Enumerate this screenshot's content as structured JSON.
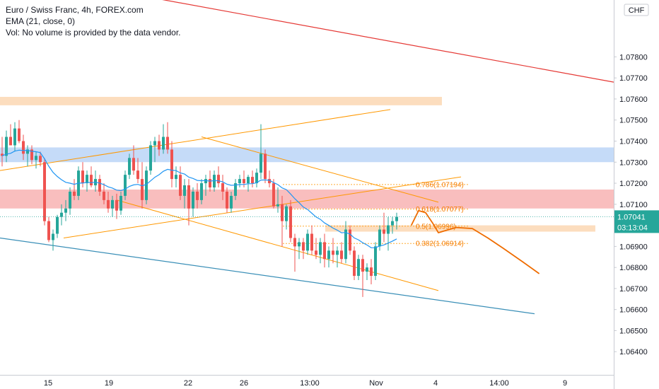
{
  "legend": {
    "title": "Euro / Swiss Franc, 4h, FOREX.com",
    "ema": "EMA (21, close, 0)",
    "vol": "Vol: No volume is provided by the data vendor."
  },
  "currency_badge": "CHF",
  "last_price": "1.07041",
  "countdown": "03:13:04",
  "colors": {
    "up": "#26a69a",
    "down": "#ef5350",
    "ema": "#2196f3",
    "orange": "#ff9800",
    "red_line": "#e53935",
    "blue_line": "#3a8fb7",
    "blue_zone": "#bbd5f7",
    "red_zone": "#f8b3b3",
    "orange_zone": "#fbd7b3",
    "projection": "#ef6c00"
  },
  "chart_data": {
    "type": "candlestick",
    "title": "Euro / Swiss Franc, 4h, FOREX.com",
    "y_axis": {
      "range": [
        1.0629,
        1.0807
      ],
      "ticks": [
        "1.07800",
        "1.07700",
        "1.07600",
        "1.07500",
        "1.07400",
        "1.07300",
        "1.07200",
        "1.07100",
        "1.06900",
        "1.06800",
        "1.06700",
        "1.06600",
        "1.06500",
        "1.06400"
      ]
    },
    "x_axis": {
      "ticks": [
        {
          "label": "15",
          "pos": 0
        },
        {
          "label": "19",
          "pos": 1
        },
        {
          "label": "22",
          "pos": 2
        },
        {
          "label": "26",
          "pos": 3
        },
        {
          "label": "13:00",
          "pos": 4
        },
        {
          "label": "Nov",
          "pos": 5
        },
        {
          "label": "4",
          "pos": 6
        },
        {
          "label": "14:00",
          "pos": 7
        },
        {
          "label": "9",
          "pos": 8
        }
      ]
    },
    "candles": [
      {
        "o": 1.0734,
        "h": 1.0742,
        "l": 1.0728,
        "c": 1.0733
      },
      {
        "o": 1.0733,
        "h": 1.0745,
        "l": 1.073,
        "c": 1.0742
      },
      {
        "o": 1.0742,
        "h": 1.0748,
        "l": 1.0738,
        "c": 1.0738
      },
      {
        "o": 1.0738,
        "h": 1.0749,
        "l": 1.0735,
        "c": 1.0746
      },
      {
        "o": 1.0746,
        "h": 1.075,
        "l": 1.0739,
        "c": 1.074
      },
      {
        "o": 1.074,
        "h": 1.0743,
        "l": 1.0731,
        "c": 1.0734
      },
      {
        "o": 1.0734,
        "h": 1.0738,
        "l": 1.0728,
        "c": 1.0736
      },
      {
        "o": 1.0736,
        "h": 1.0738,
        "l": 1.0729,
        "c": 1.0731
      },
      {
        "o": 1.0731,
        "h": 1.0735,
        "l": 1.0727,
        "c": 1.0733
      },
      {
        "o": 1.0733,
        "h": 1.0735,
        "l": 1.0728,
        "c": 1.073
      },
      {
        "o": 1.073,
        "h": 1.0732,
        "l": 1.07,
        "c": 1.0702
      },
      {
        "o": 1.0702,
        "h": 1.0704,
        "l": 1.0692,
        "c": 1.0693
      },
      {
        "o": 1.0693,
        "h": 1.0698,
        "l": 1.0688,
        "c": 1.0696
      },
      {
        "o": 1.0696,
        "h": 1.0705,
        "l": 1.0694,
        "c": 1.0704
      },
      {
        "o": 1.0704,
        "h": 1.071,
        "l": 1.07,
        "c": 1.0706
      },
      {
        "o": 1.0706,
        "h": 1.0712,
        "l": 1.0702,
        "c": 1.0708
      },
      {
        "o": 1.0708,
        "h": 1.0718,
        "l": 1.0705,
        "c": 1.0716
      },
      {
        "o": 1.0716,
        "h": 1.0722,
        "l": 1.0712,
        "c": 1.0714
      },
      {
        "o": 1.0714,
        "h": 1.0728,
        "l": 1.0712,
        "c": 1.0726
      },
      {
        "o": 1.0726,
        "h": 1.073,
        "l": 1.0718,
        "c": 1.072
      },
      {
        "o": 1.072,
        "h": 1.0726,
        "l": 1.0716,
        "c": 1.0724
      },
      {
        "o": 1.0724,
        "h": 1.0728,
        "l": 1.0718,
        "c": 1.0719
      },
      {
        "o": 1.0719,
        "h": 1.0726,
        "l": 1.0716,
        "c": 1.0722
      },
      {
        "o": 1.0722,
        "h": 1.0724,
        "l": 1.0714,
        "c": 1.0716
      },
      {
        "o": 1.0716,
        "h": 1.072,
        "l": 1.071,
        "c": 1.0712
      },
      {
        "o": 1.0712,
        "h": 1.0716,
        "l": 1.0706,
        "c": 1.0708
      },
      {
        "o": 1.0708,
        "h": 1.0714,
        "l": 1.0704,
        "c": 1.0712
      },
      {
        "o": 1.0712,
        "h": 1.0715,
        "l": 1.0703,
        "c": 1.0707
      },
      {
        "o": 1.0707,
        "h": 1.0716,
        "l": 1.0705,
        "c": 1.0714
      },
      {
        "o": 1.0714,
        "h": 1.0726,
        "l": 1.0712,
        "c": 1.0724
      },
      {
        "o": 1.0724,
        "h": 1.0734,
        "l": 1.0722,
        "c": 1.0732
      },
      {
        "o": 1.0732,
        "h": 1.0738,
        "l": 1.0724,
        "c": 1.0726
      },
      {
        "o": 1.0726,
        "h": 1.0732,
        "l": 1.072,
        "c": 1.0722
      },
      {
        "o": 1.0722,
        "h": 1.073,
        "l": 1.0708,
        "c": 1.0712
      },
      {
        "o": 1.0712,
        "h": 1.0728,
        "l": 1.071,
        "c": 1.0726
      },
      {
        "o": 1.0726,
        "h": 1.074,
        "l": 1.0724,
        "c": 1.0738
      },
      {
        "o": 1.0738,
        "h": 1.0742,
        "l": 1.073,
        "c": 1.074
      },
      {
        "o": 1.074,
        "h": 1.0743,
        "l": 1.0733,
        "c": 1.0736
      },
      {
        "o": 1.0736,
        "h": 1.0748,
        "l": 1.0734,
        "c": 1.0742
      },
      {
        "o": 1.0742,
        "h": 1.0749,
        "l": 1.0734,
        "c": 1.0736
      },
      {
        "o": 1.0736,
        "h": 1.074,
        "l": 1.0718,
        "c": 1.0722
      },
      {
        "o": 1.0722,
        "h": 1.0728,
        "l": 1.0718,
        "c": 1.0724
      },
      {
        "o": 1.0724,
        "h": 1.0728,
        "l": 1.0712,
        "c": 1.0714
      },
      {
        "o": 1.0714,
        "h": 1.0722,
        "l": 1.0708,
        "c": 1.0719
      },
      {
        "o": 1.0719,
        "h": 1.0722,
        "l": 1.07,
        "c": 1.0708
      },
      {
        "o": 1.0708,
        "h": 1.0718,
        "l": 1.0704,
        "c": 1.0716
      },
      {
        "o": 1.0716,
        "h": 1.072,
        "l": 1.0708,
        "c": 1.0712
      },
      {
        "o": 1.0712,
        "h": 1.0722,
        "l": 1.071,
        "c": 1.072
      },
      {
        "o": 1.072,
        "h": 1.0724,
        "l": 1.0714,
        "c": 1.0722
      },
      {
        "o": 1.0722,
        "h": 1.0726,
        "l": 1.0716,
        "c": 1.0718
      },
      {
        "o": 1.0718,
        "h": 1.0726,
        "l": 1.0716,
        "c": 1.0724
      },
      {
        "o": 1.0724,
        "h": 1.0728,
        "l": 1.0718,
        "c": 1.072
      },
      {
        "o": 1.072,
        "h": 1.0724,
        "l": 1.0712,
        "c": 1.0716
      },
      {
        "o": 1.0716,
        "h": 1.0718,
        "l": 1.0706,
        "c": 1.0708
      },
      {
        "o": 1.0708,
        "h": 1.0716,
        "l": 1.0706,
        "c": 1.0714
      },
      {
        "o": 1.0714,
        "h": 1.0722,
        "l": 1.0712,
        "c": 1.072
      },
      {
        "o": 1.072,
        "h": 1.0724,
        "l": 1.0718,
        "c": 1.0722
      },
      {
        "o": 1.0722,
        "h": 1.0726,
        "l": 1.0718,
        "c": 1.072
      },
      {
        "o": 1.072,
        "h": 1.0724,
        "l": 1.0716,
        "c": 1.0723
      },
      {
        "o": 1.0723,
        "h": 1.0726,
        "l": 1.0718,
        "c": 1.072
      },
      {
        "o": 1.072,
        "h": 1.0727,
        "l": 1.0718,
        "c": 1.0725
      },
      {
        "o": 1.0725,
        "h": 1.0748,
        "l": 1.0722,
        "c": 1.0734
      },
      {
        "o": 1.0734,
        "h": 1.0736,
        "l": 1.072,
        "c": 1.0722
      },
      {
        "o": 1.0722,
        "h": 1.0726,
        "l": 1.0718,
        "c": 1.072
      },
      {
        "o": 1.072,
        "h": 1.0722,
        "l": 1.0708,
        "c": 1.0709
      },
      {
        "o": 1.0709,
        "h": 1.0718,
        "l": 1.0706,
        "c": 1.071
      },
      {
        "o": 1.071,
        "h": 1.0714,
        "l": 1.069,
        "c": 1.0702
      },
      {
        "o": 1.0702,
        "h": 1.071,
        "l": 1.0698,
        "c": 1.0709
      },
      {
        "o": 1.0709,
        "h": 1.0712,
        "l": 1.0692,
        "c": 1.0694
      },
      {
        "o": 1.0694,
        "h": 1.0696,
        "l": 1.0678,
        "c": 1.069
      },
      {
        "o": 1.069,
        "h": 1.0694,
        "l": 1.0684,
        "c": 1.0692
      },
      {
        "o": 1.0692,
        "h": 1.0694,
        "l": 1.0684,
        "c": 1.0688
      },
      {
        "o": 1.0688,
        "h": 1.0698,
        "l": 1.0686,
        "c": 1.0696
      },
      {
        "o": 1.0696,
        "h": 1.07,
        "l": 1.0686,
        "c": 1.0688
      },
      {
        "o": 1.0688,
        "h": 1.0694,
        "l": 1.0684,
        "c": 1.0686
      },
      {
        "o": 1.0686,
        "h": 1.0694,
        "l": 1.0682,
        "c": 1.0692
      },
      {
        "o": 1.0692,
        "h": 1.0696,
        "l": 1.068,
        "c": 1.0684
      },
      {
        "o": 1.0684,
        "h": 1.069,
        "l": 1.068,
        "c": 1.0688
      },
      {
        "o": 1.0688,
        "h": 1.0694,
        "l": 1.0682,
        "c": 1.0686
      },
      {
        "o": 1.0686,
        "h": 1.069,
        "l": 1.068,
        "c": 1.0688
      },
      {
        "o": 1.0688,
        "h": 1.0692,
        "l": 1.0682,
        "c": 1.0684
      },
      {
        "o": 1.0684,
        "h": 1.0702,
        "l": 1.0682,
        "c": 1.0698
      },
      {
        "o": 1.0698,
        "h": 1.07,
        "l": 1.0686,
        "c": 1.0688
      },
      {
        "o": 1.0688,
        "h": 1.069,
        "l": 1.0674,
        "c": 1.0676
      },
      {
        "o": 1.0676,
        "h": 1.0686,
        "l": 1.0674,
        "c": 1.0684
      },
      {
        "o": 1.0684,
        "h": 1.0686,
        "l": 1.0666,
        "c": 1.0678
      },
      {
        "o": 1.0678,
        "h": 1.0682,
        "l": 1.0674,
        "c": 1.068
      },
      {
        "o": 1.068,
        "h": 1.0684,
        "l": 1.0672,
        "c": 1.0676
      },
      {
        "o": 1.0676,
        "h": 1.0692,
        "l": 1.0674,
        "c": 1.069
      },
      {
        "o": 1.069,
        "h": 1.07,
        "l": 1.0688,
        "c": 1.0698
      },
      {
        "o": 1.0698,
        "h": 1.0706,
        "l": 1.0692,
        "c": 1.0696
      },
      {
        "o": 1.0696,
        "h": 1.0704,
        "l": 1.0688,
        "c": 1.07
      },
      {
        "o": 1.07,
        "h": 1.0704,
        "l": 1.0696,
        "c": 1.0702
      },
      {
        "o": 1.0702,
        "h": 1.0706,
        "l": 1.0698,
        "c": 1.0704
      }
    ],
    "zones": [
      {
        "name": "orange-zone-top",
        "y1": 1.0761,
        "y2": 1.0757,
        "x_to": 0.72
      },
      {
        "name": "blue-zone",
        "y1": 1.0737,
        "y2": 1.073
      },
      {
        "name": "red-zone",
        "y1": 1.0717,
        "y2": 1.0708
      },
      {
        "name": "orange-zone-fib",
        "y1": 1.07,
        "y2": 1.0697,
        "x_from": 0.53,
        "x_to": 0.97
      }
    ],
    "fibonacci": [
      {
        "label": "0.786(1.07194)",
        "value": 1.07194
      },
      {
        "label": "0.618(1.07077)",
        "value": 1.07077
      },
      {
        "label": "0.5(1.06996)",
        "value": 1.06996
      },
      {
        "label": "0.382(1.06914)",
        "value": 1.06914
      }
    ]
  }
}
